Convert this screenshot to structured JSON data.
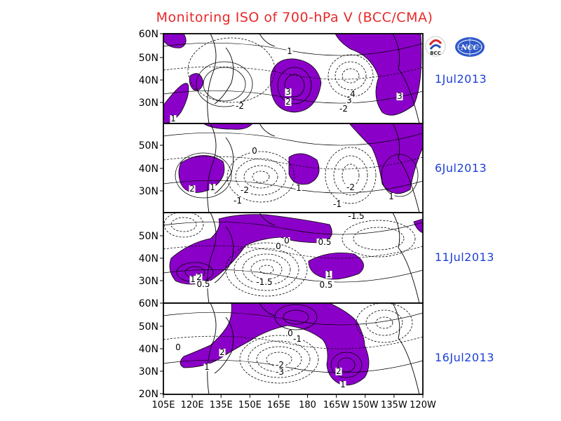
{
  "title": "Monitoring ISO of 700-hPa V (BCC/CMA)",
  "logos": {
    "left_text": "BCC",
    "right_text": "NCC"
  },
  "colors": {
    "title": "#e8282a",
    "date": "#1d3fd6",
    "positive_fill": "#8b00c8",
    "line": "#000000"
  },
  "chart_data": {
    "type": "contour-map",
    "title": "Monitoring ISO of 700-hPa V (BCC/CMA)",
    "x_axis": {
      "ticks": [
        "105E",
        "120E",
        "135E",
        "150E",
        "165E",
        "180",
        "165W",
        "150W",
        "135W",
        "120W"
      ]
    },
    "shading": "positive anomalies shaded purple",
    "panels": [
      {
        "date": "1Jul2013",
        "y_ticks": [
          "60N",
          "50N",
          "40N",
          "30N"
        ],
        "contour_labels": [
          "1",
          "3",
          "2",
          "-2",
          "-2",
          "3",
          "4",
          "3",
          "1"
        ]
      },
      {
        "date": "6Jul2013",
        "y_ticks": [
          "50N",
          "40N",
          "30N"
        ],
        "contour_labels": [
          "0",
          "1",
          "2",
          "-2",
          "-1",
          "1",
          "-2",
          "1",
          "-1"
        ]
      },
      {
        "date": "11Jul2013",
        "y_ticks": [
          "50N",
          "40N",
          "30N"
        ],
        "contour_labels": [
          "0",
          "0",
          "0.5",
          "-1.5",
          "1",
          "0.5",
          "-1.5",
          "2",
          "1",
          "0.5"
        ]
      },
      {
        "date": "16Jul2013",
        "y_ticks": [
          "60N",
          "50N",
          "40N",
          "30N",
          "20N"
        ],
        "contour_labels": [
          "0",
          "2",
          "1",
          "0",
          "-1",
          "-2",
          "-3",
          "2",
          "1"
        ]
      }
    ]
  }
}
